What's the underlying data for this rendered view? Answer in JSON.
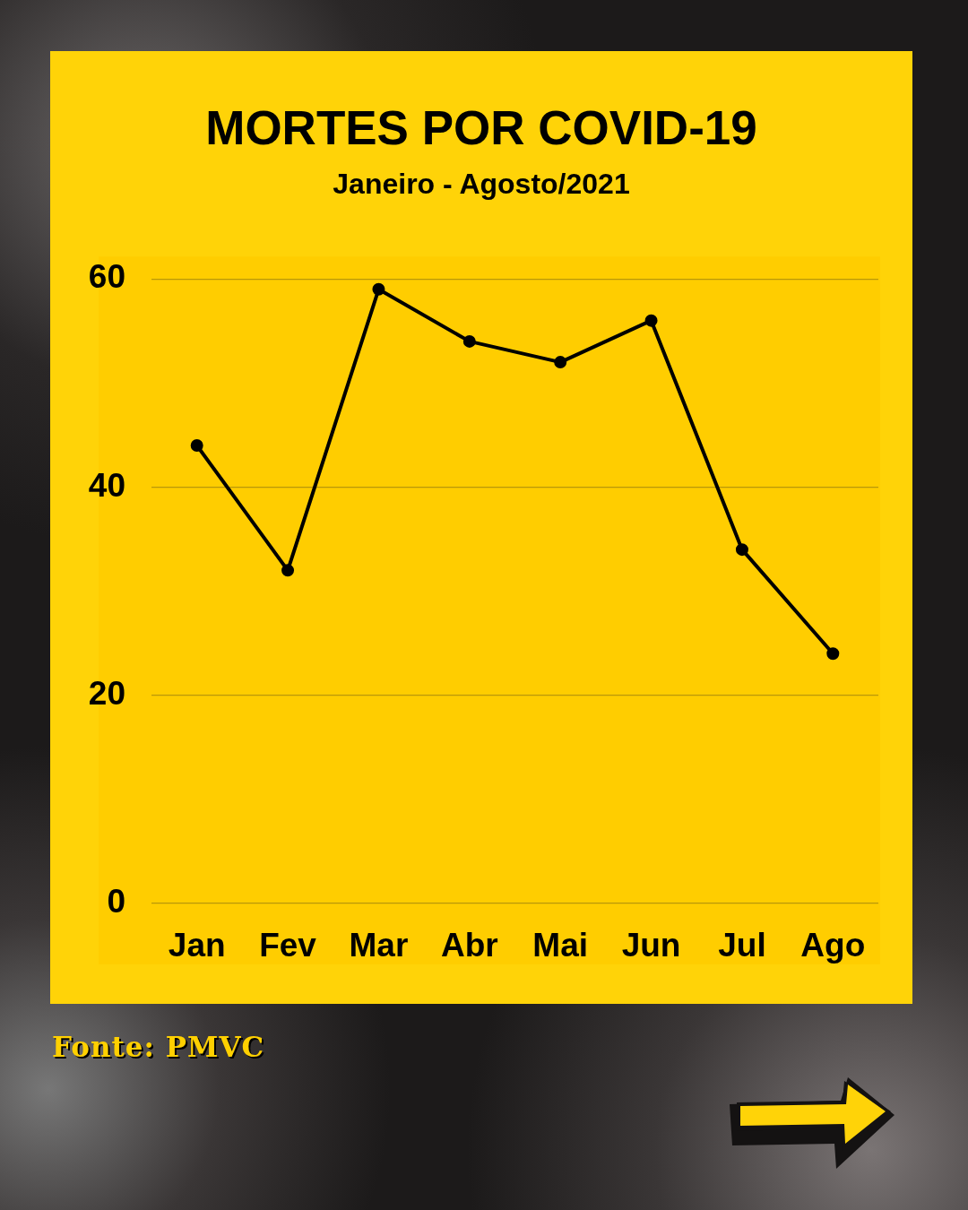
{
  "chart_data": {
    "type": "line",
    "title": "MORTES POR COVID-19",
    "subtitle": "Janeiro - Agosto/2021",
    "categories": [
      "Jan",
      "Fev",
      "Mar",
      "Abr",
      "Mai",
      "Jun",
      "Jul",
      "Ago"
    ],
    "series": [
      {
        "color": "#000000",
        "values": [
          44,
          32,
          59,
          54,
          52,
          56,
          34,
          24
        ]
      }
    ],
    "ylim": [
      0,
      60
    ],
    "yticks": [
      0,
      20,
      40,
      60
    ],
    "grid": "y",
    "legend": false,
    "marker": "circle",
    "line_style": "solid",
    "annotations": [
      "Fonte: PMVC"
    ]
  }
}
